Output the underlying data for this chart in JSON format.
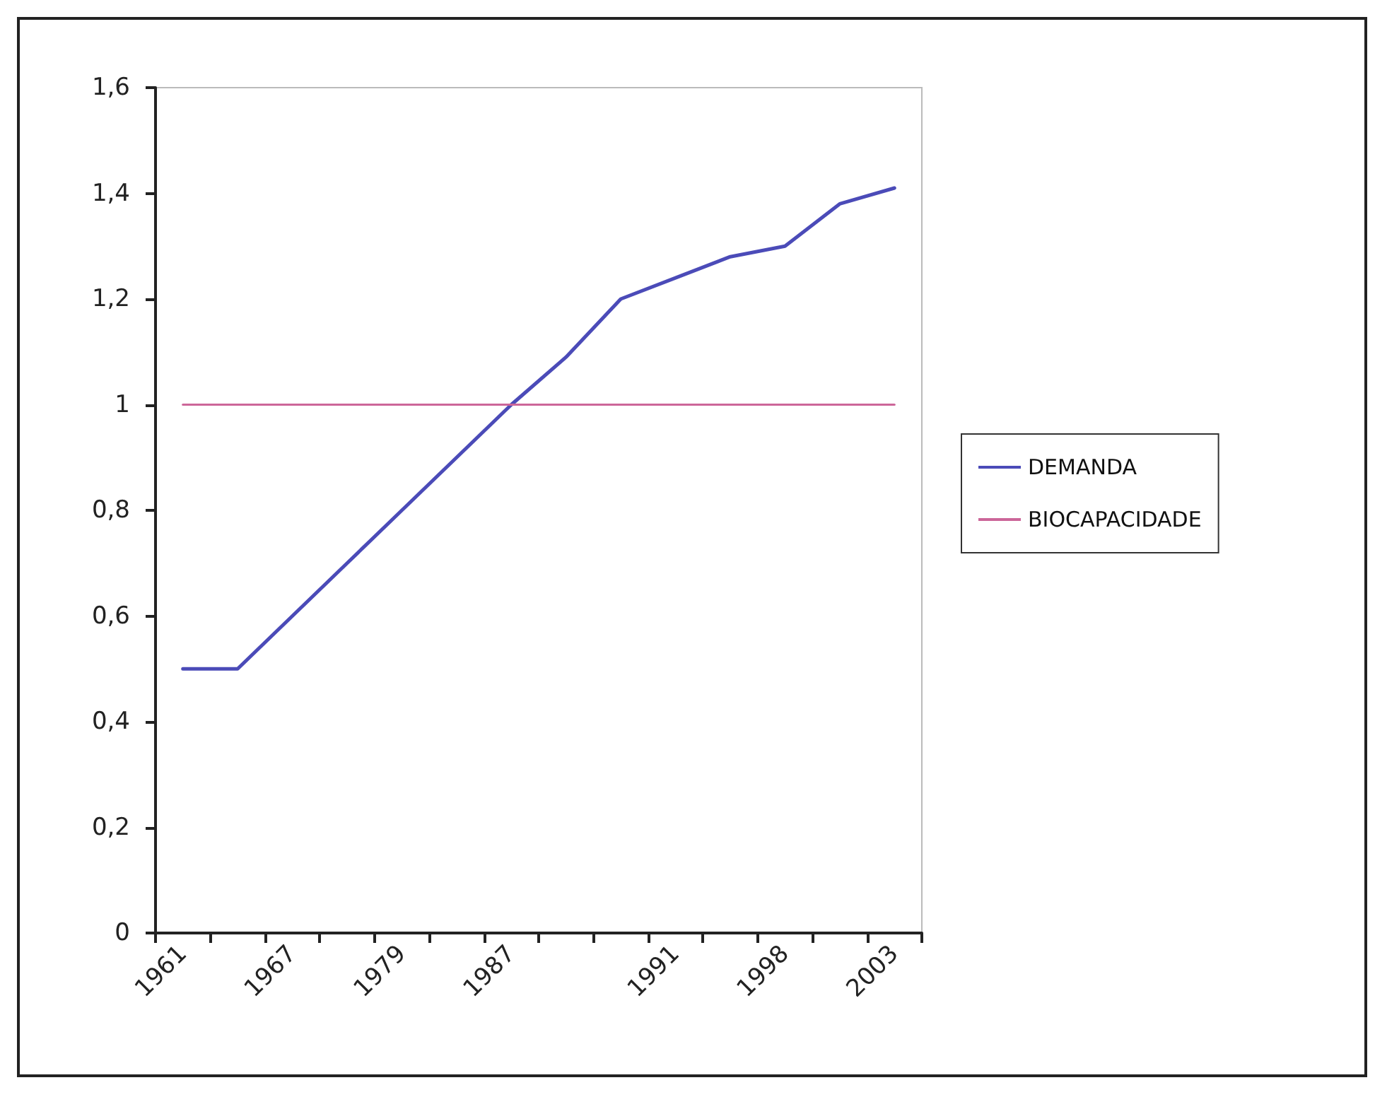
{
  "chart_data": {
    "type": "line",
    "categories": [
      "1961",
      null,
      "1967",
      null,
      "1979",
      null,
      "1987",
      null,
      null,
      "1991",
      null,
      "1998",
      null,
      "2003"
    ],
    "series": [
      {
        "name": "DEMANDA",
        "color": "#4b4bb8",
        "values": [
          0.5,
          0.5,
          0.6,
          0.7,
          0.8,
          0.9,
          1.0,
          1.09,
          1.2,
          1.24,
          1.28,
          1.3,
          1.38,
          1.41
        ]
      },
      {
        "name": "BIOCAPACIDADE",
        "color": "#cc6699",
        "values": [
          1,
          1,
          1,
          1,
          1,
          1,
          1,
          1,
          1,
          1,
          1,
          1,
          1,
          1
        ]
      }
    ],
    "ylim": [
      0,
      1.6
    ],
    "yticks": [
      {
        "value": 0,
        "label": "0"
      },
      {
        "value": 0.2,
        "label": "0,2"
      },
      {
        "value": 0.4,
        "label": "0,4"
      },
      {
        "value": 0.6,
        "label": "0,6"
      },
      {
        "value": 0.8,
        "label": "0,8"
      },
      {
        "value": 1,
        "label": "1"
      },
      {
        "value": 1.2,
        "label": "1,2"
      },
      {
        "value": 1.4,
        "label": "1,4"
      },
      {
        "value": 1.6,
        "label": "1,6"
      }
    ],
    "grid": false,
    "legend": "right",
    "marker": "none",
    "line_style": "solid"
  }
}
